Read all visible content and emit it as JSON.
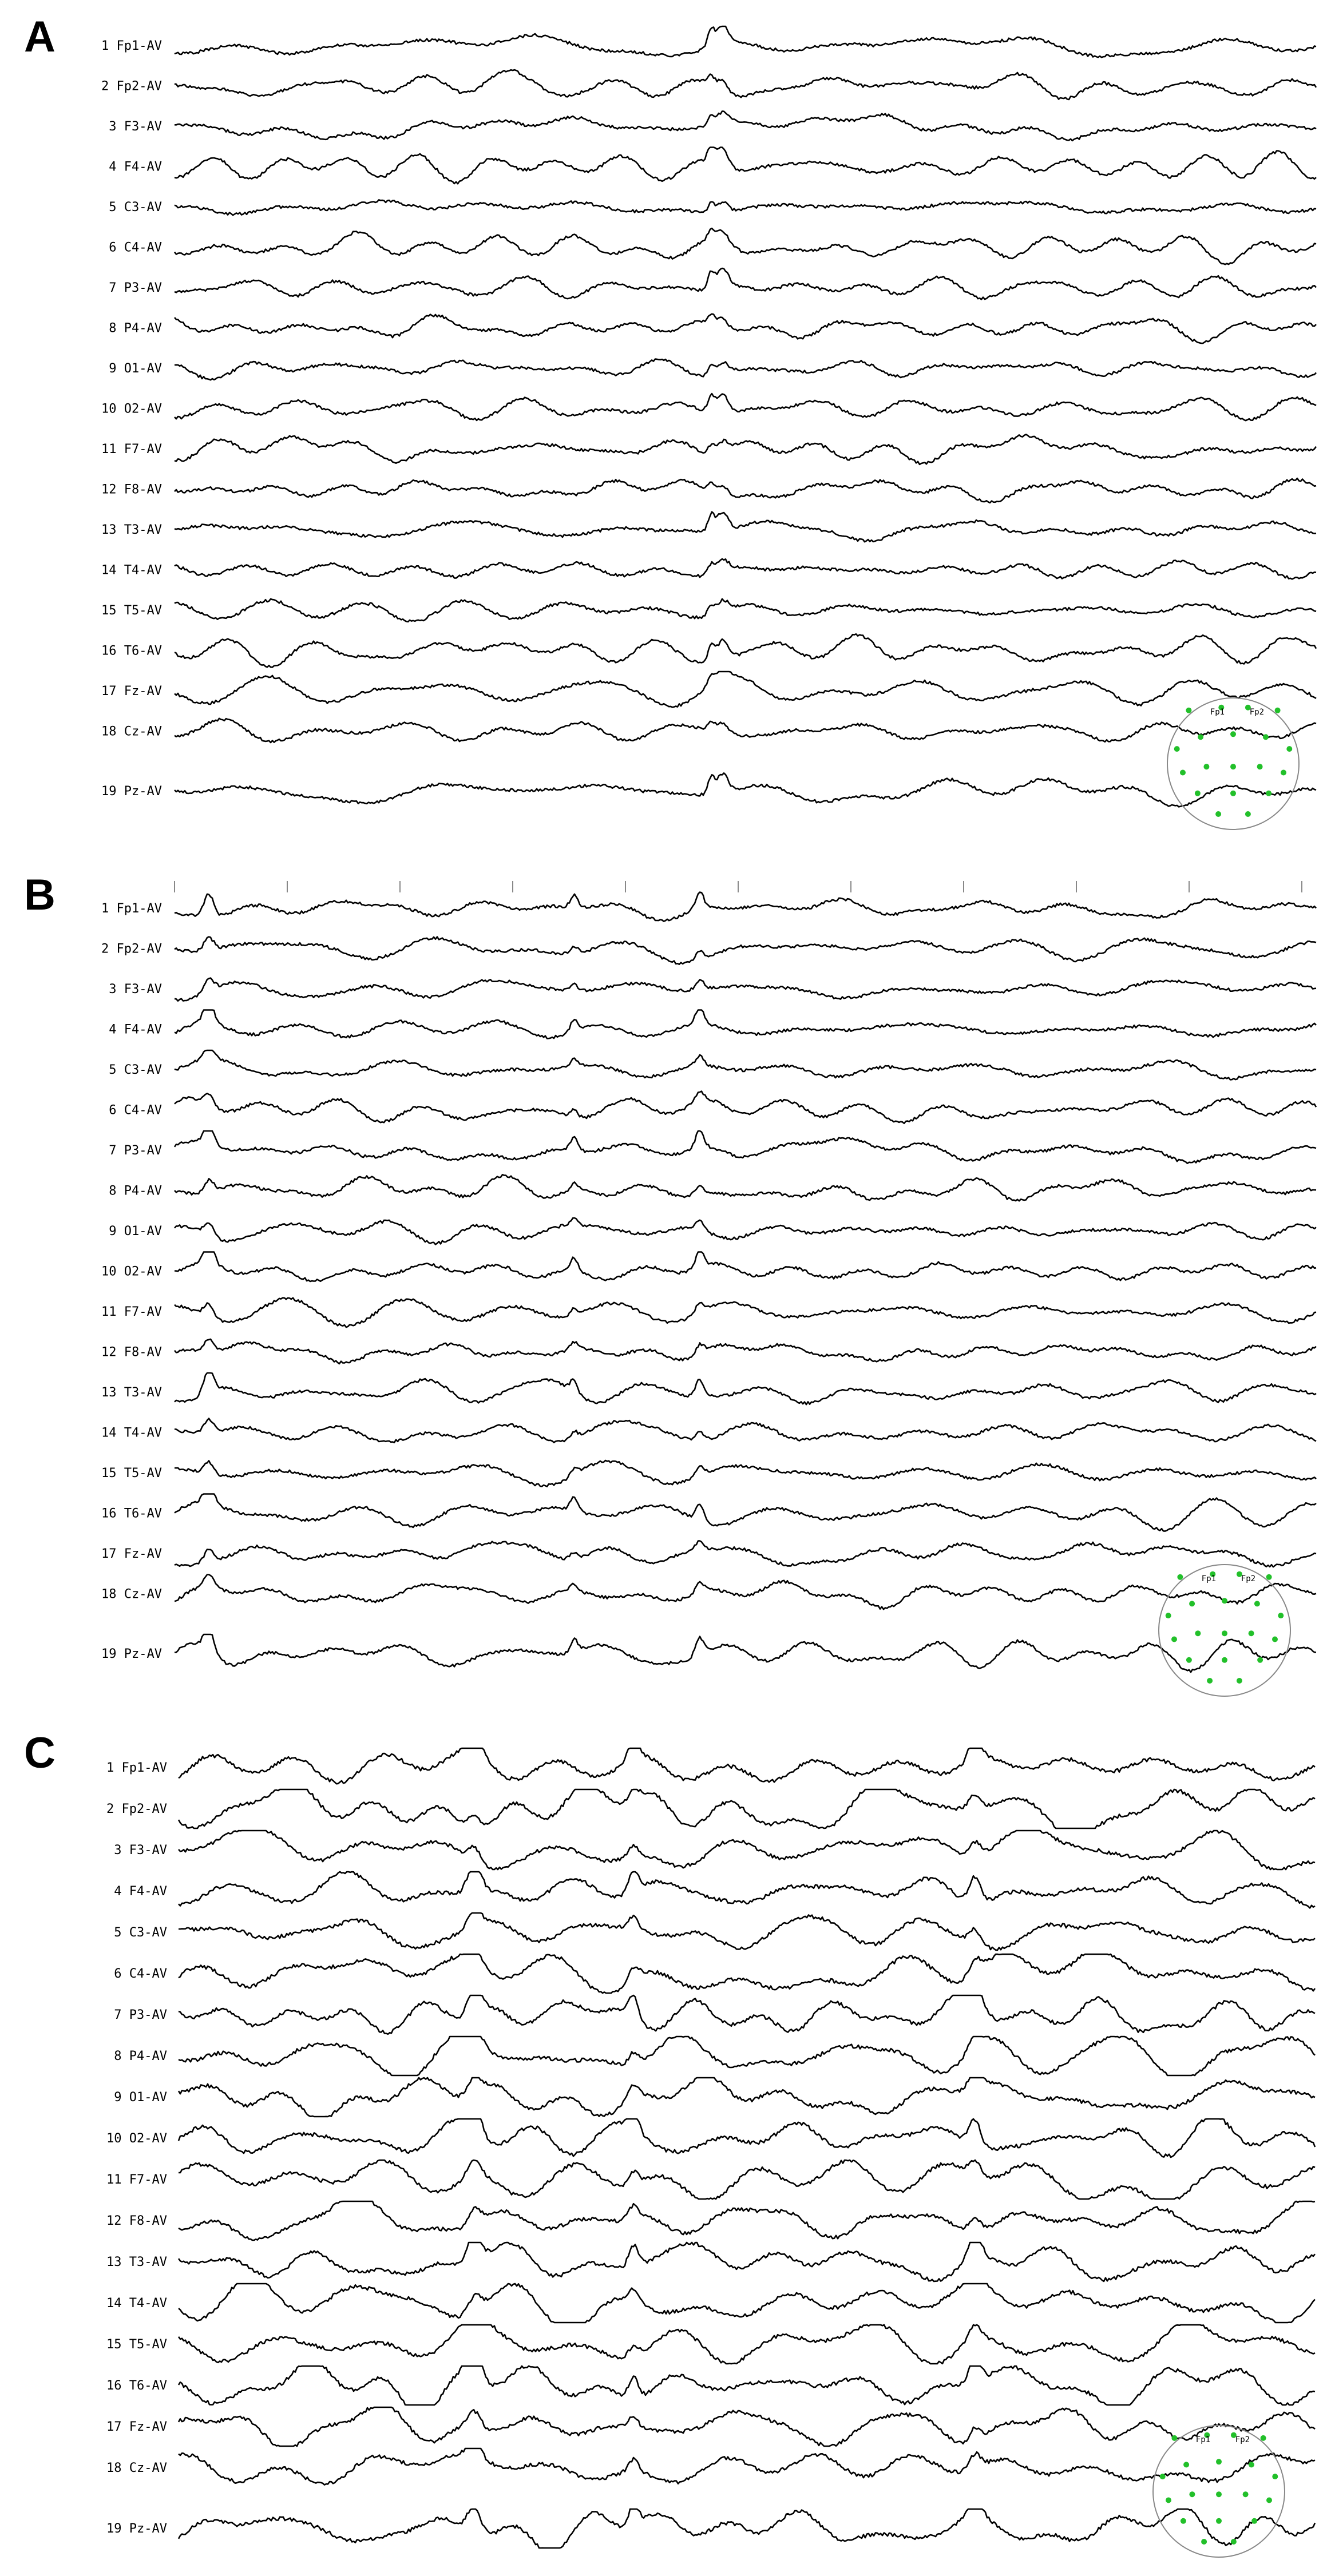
{
  "chart_data": [
    {
      "type": "line",
      "panel_label": "A",
      "channels": [
        "1 Fp1-AV",
        "2 Fp2-AV",
        "3 F3-AV",
        "4 F4-AV",
        "5 C3-AV",
        "6 C4-AV",
        "7 P3-AV",
        "8 P4-AV",
        "9 O1-AV",
        "10 O2-AV",
        "11 F7-AV",
        "12 F8-AV",
        "13 T3-AV",
        "14 T4-AV",
        "15 T5-AV",
        "16 T6-AV",
        "17 Fz-AV",
        "18 Cz-AV",
        "19 Pz-AV"
      ],
      "head_map_labels": [
        "Fp1",
        "Fp2"
      ],
      "seed": 11
    },
    {
      "type": "line",
      "panel_label": "B",
      "channels": [
        "1 Fp1-AV",
        "2 Fp2-AV",
        "3 F3-AV",
        "4 F4-AV",
        "5 C3-AV",
        "6 C4-AV",
        "7 P3-AV",
        "8 P4-AV",
        "9 O1-AV",
        "10 O2-AV",
        "11 F7-AV",
        "12 F8-AV",
        "13 T3-AV",
        "14 T4-AV",
        "15 T5-AV",
        "16 T6-AV",
        "17 Fz-AV",
        "18 Cz-AV",
        "19 Pz-AV"
      ],
      "head_map_labels": [
        "Fp1",
        "Fp2"
      ],
      "seed": 23
    },
    {
      "type": "line",
      "panel_label": "C",
      "channels": [
        "1 Fp1-AV",
        "2 Fp2-AV",
        "3 F3-AV",
        "4 F4-AV",
        "5 C3-AV",
        "6 C4-AV",
        "7 P3-AV",
        "8 P4-AV",
        "9 O1-AV",
        "10 O2-AV",
        "11 F7-AV",
        "12 F8-AV",
        "13 T3-AV",
        "14 T4-AV",
        "15 T5-AV",
        "16 T6-AV",
        "17 Fz-AV",
        "18 Cz-AV",
        "19 Pz-AV"
      ],
      "head_map_labels": [
        "Fp1",
        "Fp2"
      ],
      "seed": 37
    }
  ]
}
